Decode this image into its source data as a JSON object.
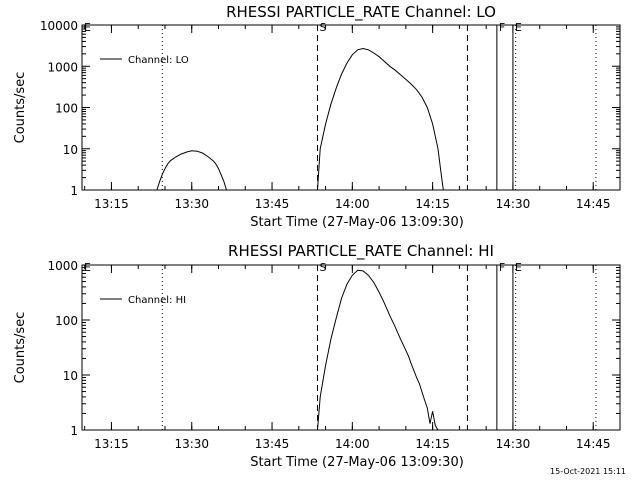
{
  "chart_data": [
    {
      "type": "line",
      "title": "RHESSI PARTICLE_RATE Channel: LO",
      "xlabel": "Start Time (27-May-06 13:09:30)",
      "ylabel": "Counts/sec",
      "yscale": "log",
      "xlim": [
        "13:09:30",
        "14:50:00"
      ],
      "ylim": [
        1,
        10000
      ],
      "x_ticks": [
        "13:15",
        "13:30",
        "13:45",
        "14:00",
        "14:15",
        "14:30",
        "14:45"
      ],
      "y_ticks": [
        "1",
        "10",
        "100",
        "1000",
        "10000"
      ],
      "legend": {
        "label": "Channel: LO",
        "position": "top-left"
      },
      "series": [
        {
          "name": "Channel: LO",
          "segments": [
            {
              "x": [
                "13:23:30",
                "13:24:00",
                "13:24:30",
                "13:25:00",
                "13:25:30",
                "13:26:00",
                "13:27:00",
                "13:28:00",
                "13:29:00",
                "13:30:00",
                "13:31:00",
                "13:32:00",
                "13:33:00",
                "13:34:00",
                "13:34:30",
                "13:35:00",
                "13:35:30",
                "13:36:00",
                "13:36:30"
              ],
              "y": [
                1,
                1.6,
                2.4,
                3.3,
                4.3,
                5.1,
                6.3,
                7.4,
                8.3,
                8.9,
                8.7,
                7.9,
                6.5,
                5.1,
                4.3,
                3.3,
                2.3,
                1.6,
                1
              ]
            },
            {
              "x": [
                "13:53:30",
                "13:54:00",
                "13:55:00",
                "13:56:00",
                "13:57:00",
                "13:58:00",
                "13:59:00",
                "14:00:00",
                "14:01:00",
                "14:02:00",
                "14:03:00",
                "14:04:00",
                "14:05:00",
                "14:06:00",
                "14:07:00",
                "14:08:00",
                "14:09:00",
                "14:10:00",
                "14:11:00",
                "14:12:00",
                "14:13:00",
                "14:14:00",
                "14:15:00",
                "14:16:00",
                "14:16:30",
                "14:17:00"
              ],
              "y": [
                1,
                10,
                40,
                120,
                300,
                650,
                1200,
                1900,
                2500,
                2700,
                2500,
                2100,
                1700,
                1300,
                1000,
                800,
                620,
                480,
                370,
                270,
                180,
                100,
                40,
                10,
                3,
                1
              ]
            }
          ]
        }
      ],
      "markers": [
        {
          "label": "E",
          "time": "13:09:30",
          "style": "dotted"
        },
        {
          "time": "13:24:30",
          "style": "dotted"
        },
        {
          "label": "S",
          "time": "13:53:30",
          "style": "dashed"
        },
        {
          "time": "14:21:30",
          "style": "dashed"
        },
        {
          "label": "F",
          "time": "14:27:00",
          "style": "solid"
        },
        {
          "label": "E",
          "time": "14:30:00",
          "style": "solid"
        },
        {
          "time": "14:30:30",
          "style": "dotted"
        },
        {
          "time": "14:45:30",
          "style": "dotted"
        }
      ]
    },
    {
      "type": "line",
      "title": "RHESSI PARTICLE_RATE Channel: HI",
      "xlabel": "Start Time (27-May-06 13:09:30)",
      "ylabel": "Counts/sec",
      "yscale": "log",
      "xlim": [
        "13:09:30",
        "14:50:00"
      ],
      "ylim": [
        1,
        1000
      ],
      "x_ticks": [
        "13:15",
        "13:30",
        "13:45",
        "14:00",
        "14:15",
        "14:30",
        "14:45"
      ],
      "y_ticks": [
        "1",
        "10",
        "100",
        "1000"
      ],
      "legend": {
        "label": "Channel: HI",
        "position": "top-left"
      },
      "series": [
        {
          "name": "Channel: HI",
          "segments": [
            {
              "x": [
                "13:53:30",
                "13:54:00",
                "13:55:00",
                "13:56:00",
                "13:57:00",
                "13:58:00",
                "13:59:00",
                "14:00:00",
                "14:01:00",
                "14:02:00",
                "14:03:00",
                "14:04:00",
                "14:05:00",
                "14:06:00",
                "14:07:00",
                "14:08:00",
                "14:09:00",
                "14:10:00",
                "14:10:30",
                "14:11:00",
                "14:11:30",
                "14:12:00",
                "14:12:30",
                "14:13:00",
                "14:13:30",
                "14:14:00",
                "14:14:30",
                "14:15:00",
                "14:15:30",
                "14:16:00"
              ],
              "y": [
                1,
                4,
                15,
                45,
                110,
                250,
                450,
                650,
                800,
                780,
                650,
                480,
                320,
                200,
                120,
                75,
                45,
                28,
                22,
                16,
                12,
                9,
                7,
                5,
                3.5,
                2.5,
                1.3,
                2.2,
                1.2,
                1
              ]
            }
          ]
        }
      ],
      "markers": [
        {
          "label": "E",
          "time": "13:09:30",
          "style": "dotted"
        },
        {
          "time": "13:24:30",
          "style": "dotted"
        },
        {
          "label": "S",
          "time": "13:53:30",
          "style": "dashed"
        },
        {
          "time": "14:21:30",
          "style": "dashed"
        },
        {
          "label": "F",
          "time": "14:27:00",
          "style": "solid"
        },
        {
          "label": "E",
          "time": "14:30:00",
          "style": "solid"
        },
        {
          "time": "14:30:30",
          "style": "dotted"
        },
        {
          "time": "14:45:30",
          "style": "dotted"
        }
      ]
    }
  ],
  "footer": {
    "timestamp": "15-Oct-2021 15:11"
  }
}
